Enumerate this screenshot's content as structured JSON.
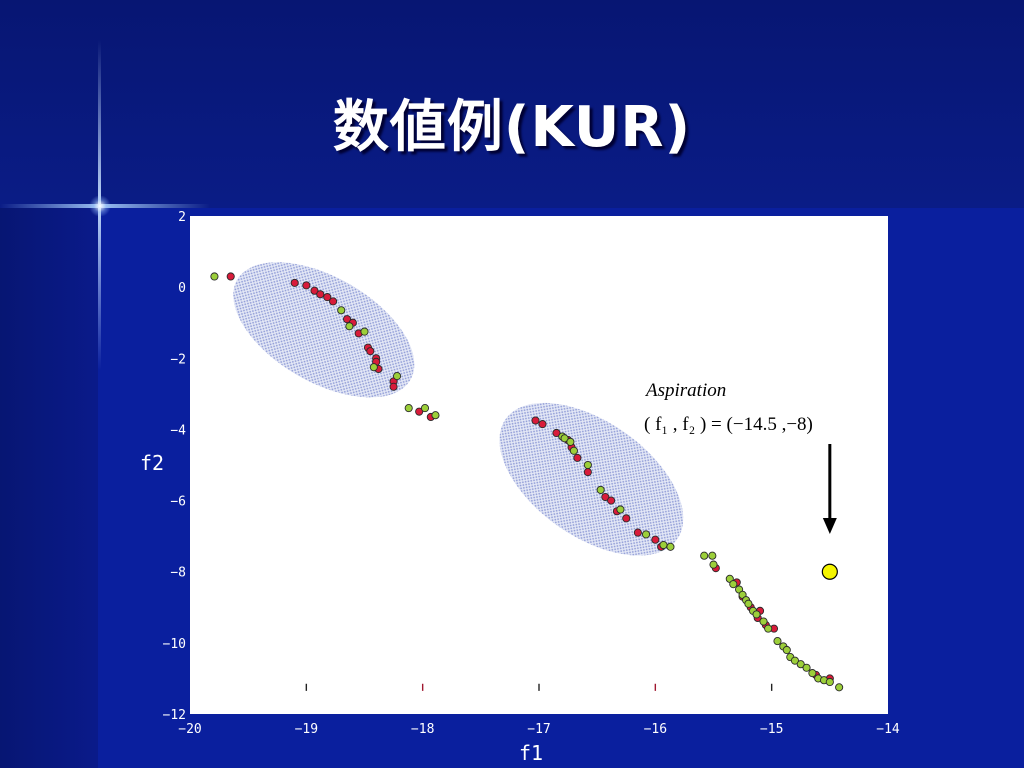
{
  "slide": {
    "title": "数値例(KUR)"
  },
  "colors": {
    "background": "#0a1f9e",
    "plot_bg": "#ffffff",
    "red_point": "#d81b3a",
    "green_point": "#9ccf3a",
    "aspiration_point": "#f5f500",
    "region_fill": "#b7bfe6"
  },
  "chart_data": {
    "type": "scatter",
    "xlabel": "f1",
    "ylabel": "f2",
    "xlim": [
      -20,
      -14
    ],
    "ylim": [
      -12,
      2
    ],
    "xticks": [
      "−20",
      "−19",
      "−18",
      "−17",
      "−16",
      "−15",
      "−14"
    ],
    "yticks": [
      "2",
      "0",
      "−2",
      "−4",
      "−6",
      "−8",
      "−10",
      "−12"
    ],
    "series": [
      {
        "color": "red",
        "points": [
          [
            -19.65,
            0.3
          ],
          [
            -19.1,
            0.12
          ],
          [
            -19.0,
            0.05
          ],
          [
            -18.93,
            -0.1
          ],
          [
            -18.88,
            -0.2
          ],
          [
            -18.82,
            -0.28
          ],
          [
            -18.77,
            -0.4
          ],
          [
            -18.65,
            -0.9
          ],
          [
            -18.6,
            -1.0
          ],
          [
            -18.55,
            -1.3
          ],
          [
            -18.47,
            -1.7
          ],
          [
            -18.45,
            -1.8
          ],
          [
            -18.4,
            -2.0
          ],
          [
            -18.4,
            -2.1
          ],
          [
            -18.38,
            -2.3
          ],
          [
            -18.25,
            -2.65
          ],
          [
            -18.25,
            -2.8
          ],
          [
            -18.03,
            -3.5
          ],
          [
            -17.93,
            -3.65
          ],
          [
            -17.03,
            -3.75
          ],
          [
            -16.97,
            -3.85
          ],
          [
            -16.85,
            -4.1
          ],
          [
            -16.75,
            -4.3
          ],
          [
            -16.72,
            -4.5
          ],
          [
            -16.67,
            -4.8
          ],
          [
            -16.58,
            -5.2
          ],
          [
            -16.43,
            -5.9
          ],
          [
            -16.38,
            -6.0
          ],
          [
            -16.33,
            -6.3
          ],
          [
            -16.25,
            -6.5
          ],
          [
            -16.15,
            -6.9
          ],
          [
            -16.0,
            -7.1
          ],
          [
            -15.95,
            -7.3
          ],
          [
            -15.48,
            -7.9
          ],
          [
            -15.3,
            -8.3
          ],
          [
            -15.25,
            -8.7
          ],
          [
            -15.18,
            -9.0
          ],
          [
            -15.12,
            -9.3
          ],
          [
            -15.1,
            -9.1
          ],
          [
            -15.05,
            -9.5
          ],
          [
            -14.98,
            -9.6
          ],
          [
            -14.62,
            -10.9
          ],
          [
            -14.5,
            -11.0
          ]
        ]
      },
      {
        "color": "green",
        "points": [
          [
            -19.79,
            0.3
          ],
          [
            -18.7,
            -0.65
          ],
          [
            -18.63,
            -1.1
          ],
          [
            -18.5,
            -1.25
          ],
          [
            -18.42,
            -2.25
          ],
          [
            -18.22,
            -2.5
          ],
          [
            -18.12,
            -3.4
          ],
          [
            -17.98,
            -3.4
          ],
          [
            -17.89,
            -3.6
          ],
          [
            -16.8,
            -4.2
          ],
          [
            -16.78,
            -4.25
          ],
          [
            -16.73,
            -4.35
          ],
          [
            -16.7,
            -4.6
          ],
          [
            -16.58,
            -5.0
          ],
          [
            -16.47,
            -5.7
          ],
          [
            -16.3,
            -6.25
          ],
          [
            -16.08,
            -6.95
          ],
          [
            -15.93,
            -7.25
          ],
          [
            -15.87,
            -7.3
          ],
          [
            -15.58,
            -7.55
          ],
          [
            -15.51,
            -7.55
          ],
          [
            -15.5,
            -7.8
          ],
          [
            -15.36,
            -8.2
          ],
          [
            -15.33,
            -8.35
          ],
          [
            -15.28,
            -8.5
          ],
          [
            -15.25,
            -8.65
          ],
          [
            -15.22,
            -8.8
          ],
          [
            -15.2,
            -8.9
          ],
          [
            -15.16,
            -9.1
          ],
          [
            -15.13,
            -9.2
          ],
          [
            -15.07,
            -9.4
          ],
          [
            -15.03,
            -9.6
          ],
          [
            -14.95,
            -9.95
          ],
          [
            -14.9,
            -10.1
          ],
          [
            -14.87,
            -10.2
          ],
          [
            -14.84,
            -10.4
          ],
          [
            -14.8,
            -10.5
          ],
          [
            -14.75,
            -10.6
          ],
          [
            -14.7,
            -10.7
          ],
          [
            -14.65,
            -10.85
          ],
          [
            -14.6,
            -11.0
          ],
          [
            -14.55,
            -11.05
          ],
          [
            -14.5,
            -11.1
          ],
          [
            -14.42,
            -11.25
          ]
        ]
      }
    ],
    "aspiration": {
      "label_line1": "Aspiration",
      "label_line2": "( f₁ , f₂ ) = (−14.5 ,−8)",
      "point": [
        -14.5,
        -8
      ]
    },
    "regions": [
      {
        "center": [
          -18.85,
          -1.2
        ],
        "rx": 0.86,
        "ry": 1.05,
        "angle": 30
      },
      {
        "center": [
          -16.55,
          -5.4
        ],
        "rx": 0.9,
        "ry": 1.15,
        "angle": 35
      }
    ],
    "x_minor_ticks": [
      -19,
      -18,
      -17,
      -16,
      -15
    ]
  }
}
